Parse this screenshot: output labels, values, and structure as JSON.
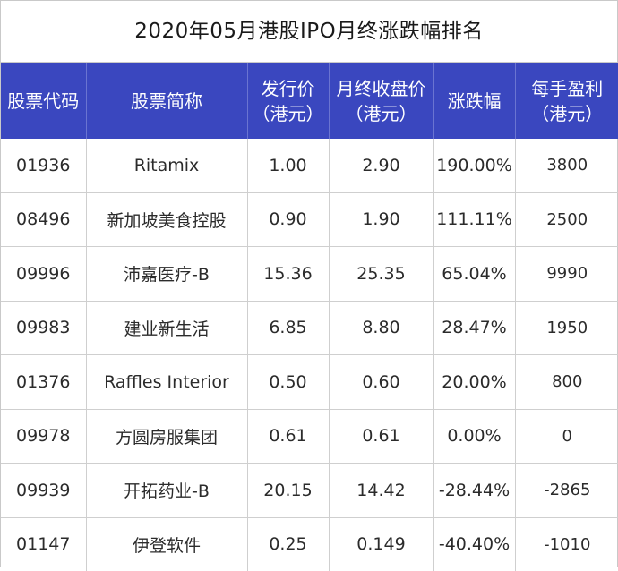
{
  "title": "2020年05月港股IPO月终涨跌幅排名",
  "headers": [
    {
      "line1": "股票代码",
      "line2": ""
    },
    {
      "line1": "股票简称",
      "line2": ""
    },
    {
      "line1": "发行价",
      "line2": "（港元）"
    },
    {
      "line1": "月终收盘价",
      "line2": "（港元）"
    },
    {
      "line1": "涨跌幅",
      "line2": ""
    },
    {
      "line1": "每手盈利",
      "line2": "（港元）"
    }
  ],
  "rows": [
    {
      "code": "01936",
      "name": "Ritamix",
      "issue_price": "1.00",
      "close_price": "2.90",
      "change": "190.00%",
      "lot_profit": "3800"
    },
    {
      "code": "08496",
      "name": "新加坡美食控股",
      "issue_price": "0.90",
      "close_price": "1.90",
      "change": "111.11%",
      "lot_profit": "2500"
    },
    {
      "code": "09996",
      "name": "沛嘉医疗-B",
      "issue_price": "15.36",
      "close_price": "25.35",
      "change": "65.04%",
      "lot_profit": "9990"
    },
    {
      "code": "09983",
      "name": "建业新生活",
      "issue_price": "6.85",
      "close_price": "8.80",
      "change": "28.47%",
      "lot_profit": "1950"
    },
    {
      "code": "01376",
      "name": "Raffles Interior",
      "issue_price": "0.50",
      "close_price": "0.60",
      "change": "20.00%",
      "lot_profit": "800"
    },
    {
      "code": "09978",
      "name": "方圆房服集团",
      "issue_price": "0.61",
      "close_price": "0.61",
      "change": "0.00%",
      "lot_profit": "0"
    },
    {
      "code": "09939",
      "name": "开拓药业-B",
      "issue_price": "20.15",
      "close_price": "14.42",
      "change": "-28.44%",
      "lot_profit": "-2865"
    },
    {
      "code": "01147",
      "name": "伊登软件",
      "issue_price": "0.25",
      "close_price": "0.149",
      "change": "-40.40%",
      "lot_profit": "-1010"
    }
  ],
  "colors": {
    "header_bg": "#3a47bf",
    "header_text": "#ffffff",
    "grid": "#cfcfcf"
  }
}
